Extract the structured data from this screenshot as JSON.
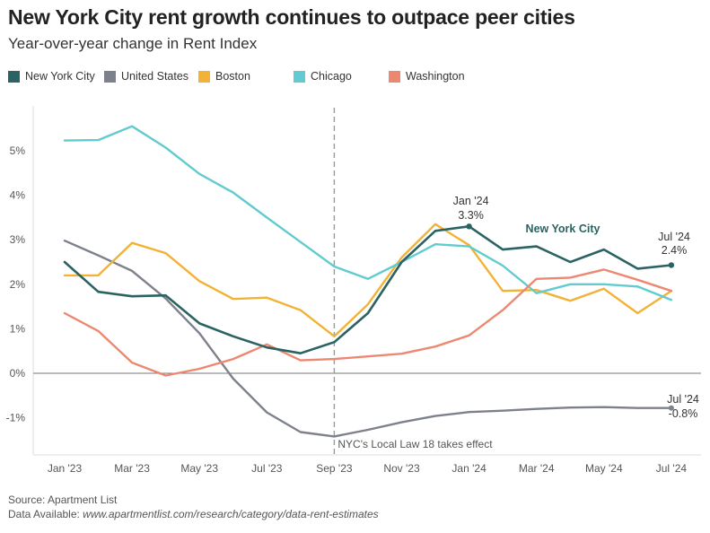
{
  "header": {
    "title": "New York City rent growth continues to outpace peer cities",
    "subtitle": "Year-over-year change in Rent Index"
  },
  "footer": {
    "source": "Source: Apartment List",
    "data_prefix": "Data Available: ",
    "data_url": "www.apartmentlist.com/research/category/data-rent-estimates"
  },
  "chart_data": {
    "type": "line",
    "x": [
      "Jan '23",
      "Feb '23",
      "Mar '23",
      "Apr '23",
      "May '23",
      "Jun '23",
      "Jul '23",
      "Aug '23",
      "Sep '23",
      "Oct '23",
      "Nov '23",
      "Dec '23",
      "Jan '24",
      "Feb '24",
      "Mar '24",
      "Apr '24",
      "May '24",
      "Jun '24",
      "Jul '24"
    ],
    "x_tick_labels": [
      "Jan '23",
      "Mar '23",
      "May '23",
      "Jul '23",
      "Sep '23",
      "Nov '23",
      "Jan '24",
      "Mar '24",
      "May '24",
      "Jul '24"
    ],
    "y_tick_labels": [
      "-1%",
      "0%",
      "1%",
      "2%",
      "3%",
      "4%",
      "5%"
    ],
    "y_ticks": [
      -1,
      0,
      1,
      2,
      3,
      4,
      5
    ],
    "ylim": [
      -1.8,
      5.9
    ],
    "y_unit": "%",
    "grid": false,
    "legend_placement": "top",
    "series": [
      {
        "name": "New York City",
        "color": "#2a6361",
        "width": 2.6,
        "values": [
          2.5,
          1.83,
          1.73,
          1.75,
          1.12,
          0.83,
          0.58,
          0.45,
          0.7,
          1.35,
          2.5,
          3.2,
          3.3,
          2.78,
          2.85,
          2.5,
          2.78,
          2.35,
          2.43
        ]
      },
      {
        "name": "United States",
        "color": "#7d818c",
        "width": 2.4,
        "values": [
          2.98,
          2.65,
          2.3,
          1.68,
          0.9,
          -0.12,
          -0.88,
          -1.32,
          -1.42,
          -1.27,
          -1.1,
          -0.96,
          -0.87,
          -0.84,
          -0.8,
          -0.77,
          -0.76,
          -0.78,
          -0.78
        ]
      },
      {
        "name": "Boston",
        "color": "#f2b236",
        "width": 2.4,
        "values": [
          2.2,
          2.2,
          2.93,
          2.7,
          2.07,
          1.67,
          1.7,
          1.42,
          0.83,
          1.55,
          2.6,
          3.35,
          2.88,
          1.85,
          1.87,
          1.63,
          1.9,
          1.35,
          1.85
        ]
      },
      {
        "name": "Chicago",
        "color": "#62cbcf",
        "width": 2.4,
        "values": [
          5.23,
          5.24,
          5.55,
          5.07,
          4.48,
          4.06,
          3.5,
          2.95,
          2.4,
          2.12,
          2.5,
          2.9,
          2.85,
          2.42,
          1.8,
          2.0,
          2.0,
          1.95,
          1.65
        ]
      },
      {
        "name": "Washington",
        "color": "#ec8872",
        "width": 2.4,
        "values": [
          1.35,
          0.95,
          0.24,
          -0.05,
          0.1,
          0.32,
          0.65,
          0.29,
          0.32,
          0.38,
          0.44,
          0.6,
          0.85,
          1.42,
          2.12,
          2.15,
          2.33,
          2.1,
          1.85
        ]
      }
    ],
    "annotations": {
      "event_label": "NYC's Local Law 18 takes effect",
      "event_x": "Sep '23",
      "nyc_peak_date": "Jan '24",
      "nyc_peak_value": "3.3%",
      "nyc_label": "New York City",
      "nyc_end_date": "Jul '24",
      "nyc_end_value": "2.4%",
      "us_end_date": "Jul '24",
      "us_end_value": "-0.8%"
    }
  }
}
